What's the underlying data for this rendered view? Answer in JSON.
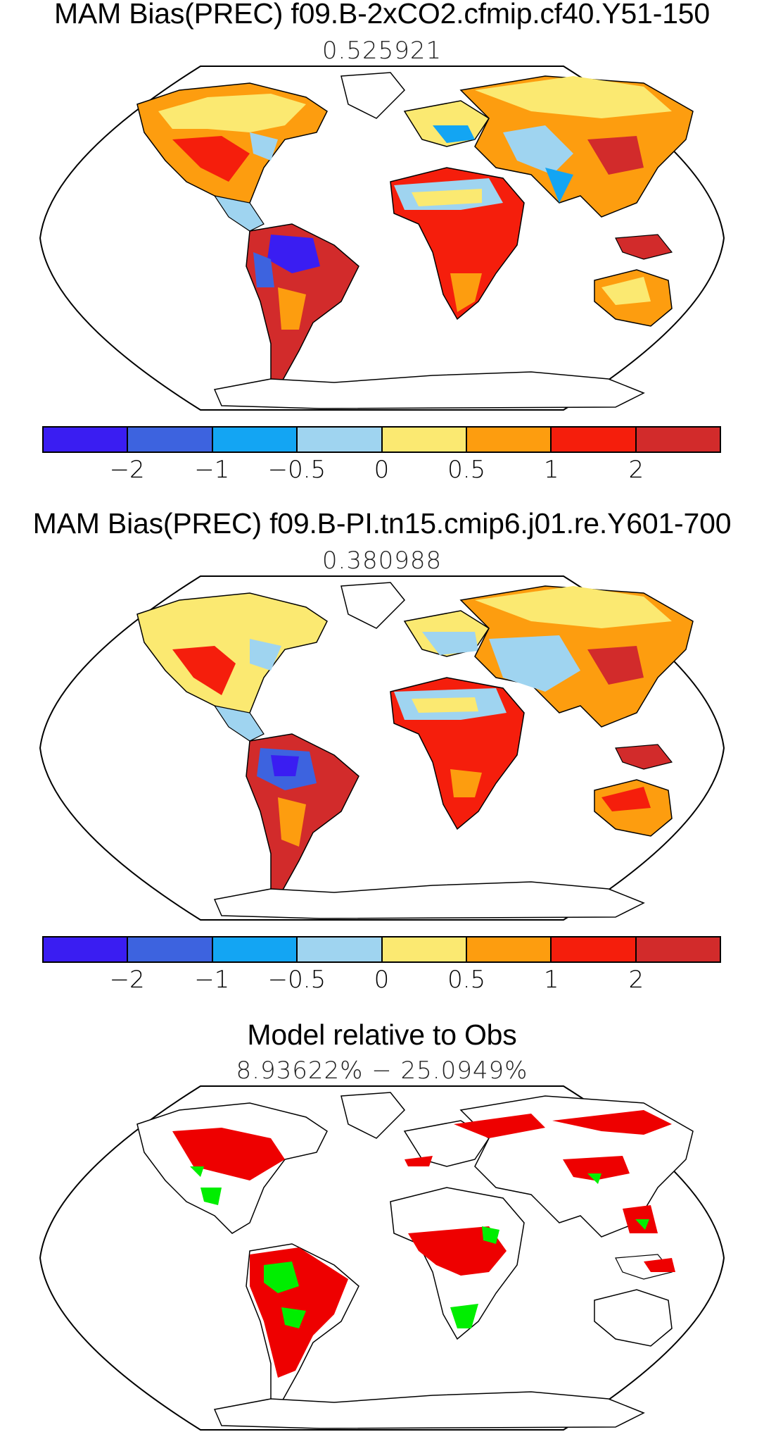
{
  "panels": [
    {
      "title": "MAM Bias(PREC) f09.B-2xCO2.cfmip.cf40.Y51-150",
      "subtitle": "0.525921"
    },
    {
      "title": "MAM Bias(PREC) f09.B-PI.tn15.cmip6.j01.re.Y601-700",
      "subtitle": "0.380988"
    },
    {
      "title": "Model relative to Obs",
      "subtitle": "8.93622% − 25.0949%"
    }
  ],
  "colorbar": {
    "colors": [
      "#3a1df2",
      "#3d63df",
      "#13a5f3",
      "#9fd4f0",
      "#fbe971",
      "#fd9d0f",
      "#f51e0c",
      "#d22b2b"
    ],
    "tick_labels": [
      "−2",
      "−1",
      "−0.5",
      "0",
      "0.5",
      "1",
      "2"
    ]
  },
  "significance_colors": {
    "positive": "#ee0000",
    "negative": "#00ee00"
  },
  "projection": "robinson",
  "map_elements": [
    "coastlines",
    "land precipitation bias shading"
  ]
}
